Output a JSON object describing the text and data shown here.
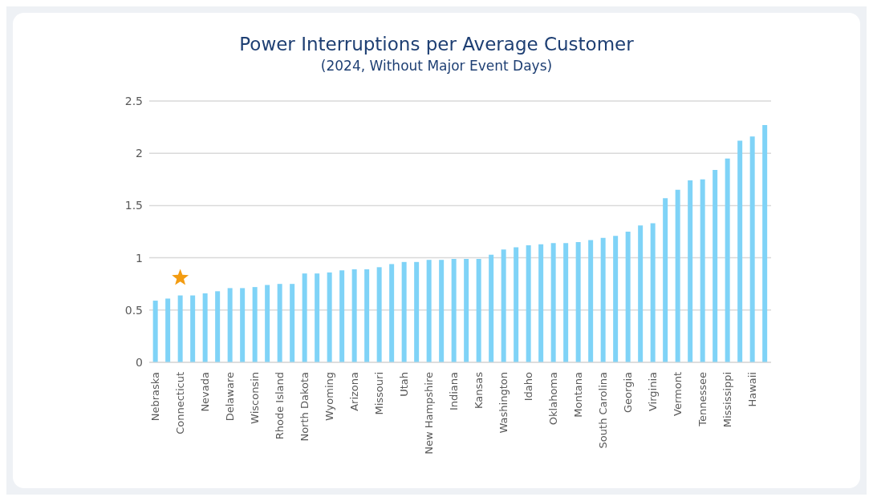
{
  "chart_data": {
    "type": "bar",
    "title": "Power Interruptions per Average Customer",
    "subtitle": "(2024, Without Major Event Days)",
    "categories": [
      "Nebraska",
      null,
      "Connecticut",
      null,
      "Nevada",
      null,
      "Delaware",
      null,
      "Wisconsin",
      null,
      "Rhode Island",
      null,
      "North Dakota",
      null,
      "Wyoming",
      null,
      "Arizona",
      null,
      "Missouri",
      null,
      "Utah",
      null,
      "New Hampshire",
      null,
      "Indiana",
      null,
      "Kansas",
      null,
      "Washington",
      null,
      "Idaho",
      null,
      "Oklahoma",
      null,
      "Montana",
      null,
      "South Carolina",
      null,
      "Georgia",
      null,
      "Virginia",
      null,
      "Vermont",
      null,
      "Tennessee",
      null,
      "Mississippi",
      null,
      "Hawaii",
      null
    ],
    "values": [
      0.59,
      0.61,
      0.64,
      0.64,
      0.66,
      0.68,
      0.71,
      0.71,
      0.72,
      0.74,
      0.75,
      0.75,
      0.85,
      0.85,
      0.86,
      0.88,
      0.89,
      0.89,
      0.91,
      0.94,
      0.96,
      0.96,
      0.98,
      0.98,
      0.99,
      0.99,
      0.99,
      1.03,
      1.08,
      1.1,
      1.12,
      1.13,
      1.14,
      1.14,
      1.15,
      1.17,
      1.19,
      1.21,
      1.25,
      1.31,
      1.33,
      1.57,
      1.65,
      1.74,
      1.75,
      1.84,
      1.95,
      2.12,
      2.16,
      2.27
    ],
    "color": "#7fd3f7",
    "ylim": [
      0,
      2.5
    ],
    "yticks": [
      0,
      0.5,
      1,
      1.5,
      2,
      2.5
    ],
    "grid": "y"
  }
}
